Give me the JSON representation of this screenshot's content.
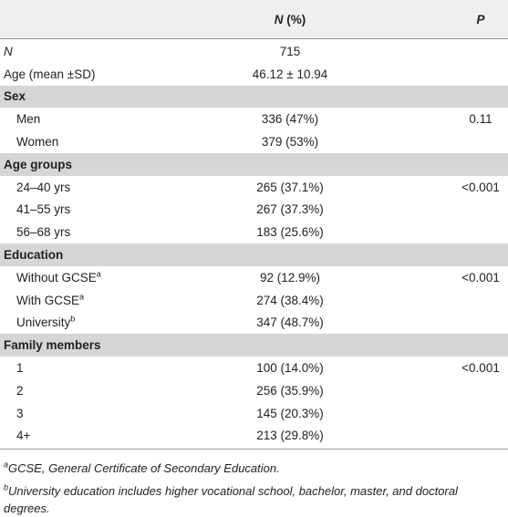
{
  "table": {
    "columns": [
      {
        "symbol": "N",
        "text": "(%)"
      },
      {
        "symbol": "P"
      }
    ],
    "rows": [
      {
        "label": "N",
        "label_italic": true,
        "value": "715"
      },
      {
        "label": "Age (mean ±SD)",
        "value": "46.12 ± 10.94"
      },
      {
        "section": "Sex"
      },
      {
        "label": "Men",
        "value": "336 (47%)",
        "p": "0.11"
      },
      {
        "label": "Women",
        "value": "379 (53%)"
      },
      {
        "section": "Age groups"
      },
      {
        "label": "24–40 yrs",
        "value": "265 (37.1%)",
        "p": "<0.001"
      },
      {
        "label": "41–55 yrs",
        "value": "267 (37.3%)"
      },
      {
        "label": "56–68 yrs",
        "value": "183 (25.6%)"
      },
      {
        "section": "Education"
      },
      {
        "label": "Without GCSE",
        "sup": "a",
        "value": "92 (12.9%)",
        "p": "<0.001"
      },
      {
        "label": "With GCSE",
        "sup": "a",
        "value": "274 (38.4%)"
      },
      {
        "label": "University",
        "sup": "b",
        "value": "347 (48.7%)"
      },
      {
        "section": "Family members"
      },
      {
        "label": "1",
        "value": "100 (14.0%)",
        "p": "<0.001"
      },
      {
        "label": "2",
        "value": "256 (35.9%)"
      },
      {
        "label": "3",
        "value": "145 (20.3%)"
      },
      {
        "label": "4+",
        "value": "213 (29.8%)"
      }
    ],
    "footnotes": [
      {
        "sup": "a",
        "text": "GCSE, General Certificate of Secondary Education."
      },
      {
        "sup": "b",
        "text": "University education includes higher vocational school, bachelor, master, and doctoral degrees."
      }
    ]
  }
}
